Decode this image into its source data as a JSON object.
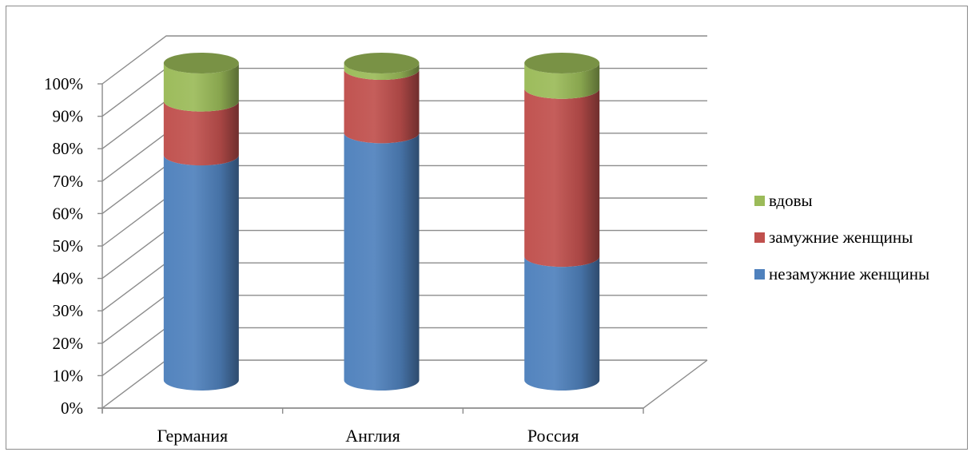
{
  "chart_data": {
    "type": "bar",
    "stacked": true,
    "percent_stacked": true,
    "style_3d": "cylinder",
    "title": "",
    "xlabel": "",
    "ylabel": "",
    "categories": [
      "Германия",
      "Англия",
      "Россия"
    ],
    "series": [
      {
        "name": "незамужние женщины",
        "color": "#4f81bd",
        "values": [
          71,
          78,
          39
        ]
      },
      {
        "name": "замужние женщины",
        "color": "#c0504d",
        "values": [
          17,
          20,
          53
        ]
      },
      {
        "name": "вдовы",
        "color": "#9bbb59",
        "values": [
          12,
          2,
          8
        ]
      }
    ],
    "ylim": [
      0,
      100
    ],
    "yticks": [
      "0%",
      "10%",
      "20%",
      "30%",
      "40%",
      "50%",
      "60%",
      "70%",
      "80%",
      "90%",
      "100%"
    ],
    "grid": true,
    "legend_position": "right",
    "legend_order": [
      "вдовы",
      "замужние женщины",
      "незамужние женщины"
    ]
  }
}
